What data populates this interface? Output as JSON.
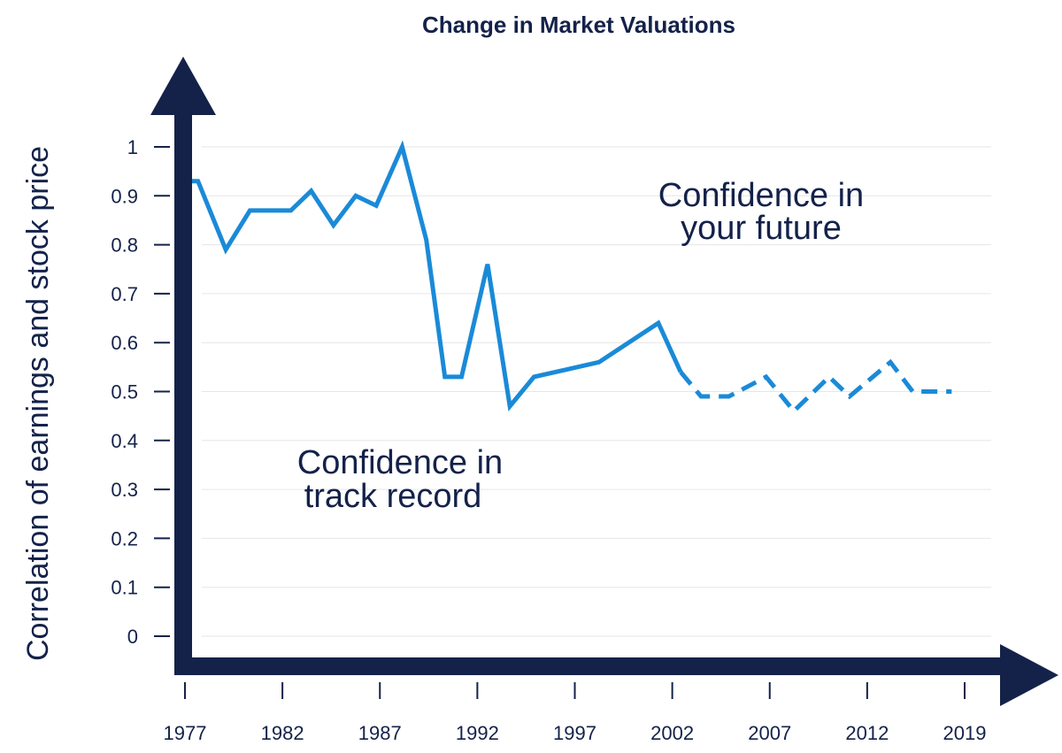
{
  "colors": {
    "axis": "#14224a",
    "line": "#1a8ad8",
    "grid": "#e6e6e6"
  },
  "chart_data": {
    "type": "line",
    "title": "Change in Market Valuations",
    "xlabel": "",
    "ylabel": "Correlation of earnings and stock price",
    "xlim": [
      1977,
      2019
    ],
    "ylim": [
      0,
      1
    ],
    "x_ticks": [
      "1977",
      "1982",
      "1987",
      "1992",
      "1997",
      "2002",
      "2007",
      "2012",
      "2019"
    ],
    "y_ticks": [
      "0",
      "0.1",
      "0.2",
      "0.3",
      "0.4",
      "0.5",
      "0.6",
      "0.7",
      "0.8",
      "0.9",
      "1"
    ],
    "grid": true,
    "legend": "none",
    "series": [
      {
        "solid": [
          [
            1977.2,
            0.93
          ],
          [
            1977.7,
            0.93
          ],
          [
            1979.2,
            0.79
          ],
          [
            1980.5,
            0.87
          ],
          [
            1982.7,
            0.87
          ],
          [
            1983.8,
            0.91
          ],
          [
            1985.0,
            0.84
          ],
          [
            1986.2,
            0.9
          ],
          [
            1987.3,
            0.88
          ],
          [
            1988.7,
            1.0
          ],
          [
            1990.0,
            0.81
          ],
          [
            1991.0,
            0.53
          ],
          [
            1991.9,
            0.53
          ],
          [
            1993.3,
            0.76
          ],
          [
            1994.5,
            0.47
          ],
          [
            1995.8,
            0.53
          ],
          [
            1999.3,
            0.56
          ],
          [
            2002.5,
            0.64
          ],
          [
            2003.7,
            0.54
          ]
        ],
        "dashed": [
          [
            2003.7,
            0.54
          ],
          [
            2004.8,
            0.49
          ],
          [
            2006.3,
            0.49
          ],
          [
            2008.3,
            0.53
          ],
          [
            2009.8,
            0.46
          ],
          [
            2011.7,
            0.53
          ],
          [
            2012.8,
            0.49
          ],
          [
            2015.0,
            0.56
          ],
          [
            2016.2,
            0.5
          ],
          [
            2018.3,
            0.5
          ]
        ]
      }
    ],
    "annotations": [
      {
        "lines": [
          "Confidence in",
          "your future"
        ]
      },
      {
        "lines": [
          "Confidence in",
          "track record"
        ]
      }
    ]
  }
}
